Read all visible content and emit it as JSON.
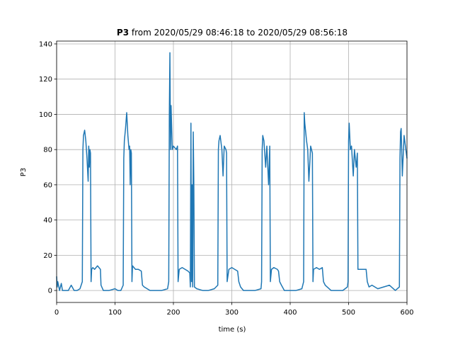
{
  "chart_data": {
    "type": "line",
    "title_parts": [
      "P3",
      "from 2020/05/29 08:46:18 to 2020/05/29 08:56:18"
    ],
    "xlabel": "time (s)",
    "ylabel": "P3",
    "xlim": [
      0,
      600
    ],
    "xticks": [
      0,
      100,
      200,
      300,
      400,
      500,
      600
    ],
    "ylim": [
      -6.8,
      141.6
    ],
    "yticks": [
      0,
      20,
      40,
      60,
      80,
      100,
      120,
      140
    ],
    "grid": true,
    "x": [
      0,
      1,
      2,
      5,
      8,
      10,
      15,
      20,
      25,
      30,
      35,
      40,
      44,
      45,
      46,
      48,
      50,
      52,
      54,
      55,
      56,
      57,
      58,
      59,
      60,
      62,
      65,
      70,
      75,
      76,
      80,
      90,
      100,
      105,
      110,
      114,
      115,
      116,
      118,
      120,
      122,
      124,
      125,
      126,
      127,
      128,
      129,
      130,
      135,
      140,
      145,
      147,
      150,
      160,
      170,
      180,
      190,
      192,
      193,
      194,
      195,
      196,
      198,
      200,
      205,
      207,
      208,
      210,
      215,
      220,
      225,
      228,
      229,
      230,
      231,
      232,
      233,
      234,
      235,
      236,
      240,
      250,
      260,
      270,
      276,
      277,
      278,
      280,
      283,
      285,
      287,
      290,
      291,
      292,
      295,
      300,
      305,
      310,
      312,
      315,
      320,
      330,
      340,
      350,
      351,
      352,
      353,
      355,
      358,
      360,
      363,
      365,
      366,
      368,
      372,
      378,
      380,
      382,
      385,
      390,
      400,
      410,
      420,
      423,
      424,
      425,
      428,
      430,
      432,
      435,
      438,
      439,
      440,
      445,
      450,
      455,
      457,
      460,
      470,
      480,
      490,
      498,
      499,
      500,
      501,
      503,
      505,
      508,
      510,
      513,
      515,
      516,
      520,
      525,
      530,
      532,
      535,
      540,
      550,
      560,
      570,
      580,
      587,
      588,
      589,
      590,
      592,
      595,
      598,
      600
    ],
    "series": [
      {
        "name": "P3",
        "color": "#1f77b4",
        "values": [
          8,
          2,
          5,
          0,
          4,
          0,
          0,
          0,
          3,
          0,
          0,
          1,
          5,
          80,
          88,
          91,
          85,
          75,
          62,
          82,
          70,
          80,
          78,
          5,
          12,
          13,
          12,
          14,
          12,
          3,
          0,
          0,
          1,
          0,
          0,
          3,
          75,
          85,
          92,
          101,
          88,
          80,
          82,
          60,
          80,
          78,
          5,
          14,
          12,
          12,
          11,
          3,
          2,
          0,
          0,
          0,
          1,
          5,
          100,
          135,
          80,
          105,
          80,
          82,
          80,
          82,
          5,
          12,
          13,
          12,
          11,
          10,
          2,
          95,
          5,
          60,
          2,
          90,
          60,
          2,
          1,
          0,
          0,
          1,
          3,
          80,
          85,
          88,
          80,
          65,
          82,
          80,
          78,
          5,
          12,
          13,
          12,
          11,
          5,
          2,
          0,
          0,
          0,
          1,
          5,
          80,
          88,
          85,
          70,
          82,
          60,
          82,
          5,
          12,
          13,
          12,
          11,
          5,
          3,
          0,
          0,
          0,
          1,
          5,
          101,
          95,
          85,
          80,
          62,
          82,
          78,
          5,
          12,
          13,
          12,
          13,
          5,
          3,
          0,
          0,
          0,
          2,
          5,
          85,
          95,
          80,
          82,
          65,
          80,
          70,
          78,
          12,
          12,
          12,
          12,
          5,
          2,
          3,
          1,
          2,
          3,
          0,
          2,
          75,
          90,
          92,
          65,
          88,
          80,
          75
        ]
      }
    ]
  }
}
